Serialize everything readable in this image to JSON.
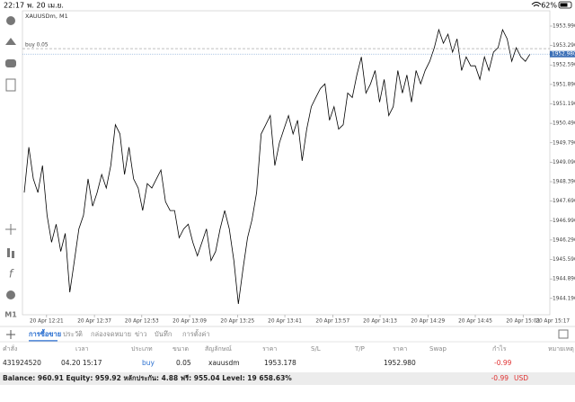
{
  "status": {
    "time": "22:17",
    "date": "พ. 20 เม.ย.",
    "battery": "62%"
  },
  "toolbar": {
    "timeframe": "M1"
  },
  "chart": {
    "type": "line",
    "symbol": "XAUUSDm, M1",
    "order_label": "buy 0.05",
    "color": "#000000",
    "current_price": {
      "value": 1952.98,
      "label": "1952.980"
    },
    "values": [
      1948.0,
      1949.63,
      1948.49,
      1948.0,
      1948.97,
      1947.18,
      1946.21,
      1946.86,
      1945.88,
      1946.53,
      1944.41,
      1945.55,
      1946.69,
      1947.18,
      1948.49,
      1947.51,
      1948.0,
      1948.65,
      1948.16,
      1948.97,
      1950.44,
      1950.11,
      1948.65,
      1949.63,
      1948.49,
      1948.16,
      1947.35,
      1948.32,
      1948.16,
      1948.49,
      1948.81,
      1947.67,
      1947.35,
      1947.35,
      1946.37,
      1946.69,
      1946.86,
      1946.21,
      1945.72,
      1946.21,
      1946.69,
      1945.55,
      1945.88,
      1946.69,
      1947.35,
      1946.69,
      1945.55,
      1943.99,
      1945.23,
      1946.37,
      1947.02,
      1948.0,
      1950.11,
      1950.44,
      1950.77,
      1948.97,
      1949.79,
      1950.28,
      1950.77,
      1950.11,
      1950.6,
      1949.14,
      1950.28,
      1951.09,
      1951.42,
      1951.74,
      1951.91,
      1950.6,
      1951.09,
      1950.28,
      1950.44,
      1951.58,
      1951.42,
      1952.23,
      1952.88,
      1951.58,
      1951.91,
      1952.39,
      1951.25,
      1952.07,
      1950.77,
      1951.09,
      1952.39,
      1951.58,
      1952.23,
      1951.25,
      1952.39,
      1951.91,
      1952.39,
      1952.72,
      1953.21,
      1953.86,
      1953.37,
      1953.7,
      1953.05,
      1953.53,
      1952.39,
      1952.88,
      1952.56,
      1952.56,
      1952.07,
      1952.88,
      1952.39,
      1953.05,
      1953.21,
      1953.86,
      1953.53,
      1952.72,
      1953.21,
      1952.88,
      1952.72,
      1952.98
    ],
    "xlim": [
      0,
      113
    ],
    "xticks": [
      {
        "value": 4.9,
        "label": "20 Apr 12:21"
      },
      {
        "value": 15.4,
        "label": "20 Apr 12:37"
      },
      {
        "value": 25.8,
        "label": "20 Apr 12:53"
      },
      {
        "value": 36.3,
        "label": "20 Apr 13:09"
      },
      {
        "value": 46.8,
        "label": "20 Apr 13:25"
      },
      {
        "value": 57.2,
        "label": "20 Apr 13:41"
      },
      {
        "value": 67.7,
        "label": "20 Apr 13:57"
      },
      {
        "value": 78.1,
        "label": "20 Apr 14:13"
      },
      {
        "value": 88.6,
        "label": "20 Apr 14:29"
      },
      {
        "value": 99.0,
        "label": "20 Apr 14:45"
      },
      {
        "value": 109.5,
        "label": "20 Apr 15:01"
      },
      {
        "value": 116,
        "label": "20 Apr 15:17"
      }
    ],
    "ylim": [
      1943.6,
      1954.54
    ],
    "yticks": [
      {
        "value": 1953.99,
        "label": "1953.990"
      },
      {
        "value": 1953.29,
        "label": "1953.290"
      },
      {
        "value": 1952.59,
        "label": "1952.590"
      },
      {
        "value": 1951.89,
        "label": "1951.890"
      },
      {
        "value": 1951.19,
        "label": "1951.190"
      },
      {
        "value": 1950.49,
        "label": "1950.490"
      },
      {
        "value": 1949.79,
        "label": "1949.790"
      },
      {
        "value": 1949.09,
        "label": "1949.090"
      },
      {
        "value": 1948.39,
        "label": "1948.390"
      },
      {
        "value": 1947.69,
        "label": "1947.690"
      },
      {
        "value": 1946.99,
        "label": "1946.990"
      },
      {
        "value": 1946.29,
        "label": "1946.290"
      },
      {
        "value": 1945.59,
        "label": "1945.590"
      },
      {
        "value": 1944.89,
        "label": "1944.890"
      },
      {
        "value": 1944.19,
        "label": "1944.190"
      }
    ]
  },
  "tabs": [
    "การซื้อขาย",
    "ประวัติ",
    "กล่องจดหมาย",
    "ข่าว",
    "บันทึก",
    "การตั้งค่า"
  ],
  "table": {
    "columns": [
      "คำสั่ง",
      "เวลา",
      "ประเภท",
      "ขนาด",
      "สัญลักษณ์",
      "ราคา",
      "S/L",
      "T/P",
      "ราคา",
      "Swap",
      "กำไร",
      "หมายเหตุ"
    ],
    "row": {
      "order": "431924520",
      "time": "04.20 15:17",
      "type": "buy",
      "size": "0.05",
      "symbol": "xauusdm",
      "price": 1953.178,
      "current": "1952.980",
      "profit": "-0.99"
    }
  },
  "footer": {
    "summary": "Balance: 960.91 Equity: 959.92 หลักประกัน: 4.88 ฟรี: 955.04 Level: 19 658.63%",
    "profit": "-0.99",
    "currency": "USD"
  }
}
